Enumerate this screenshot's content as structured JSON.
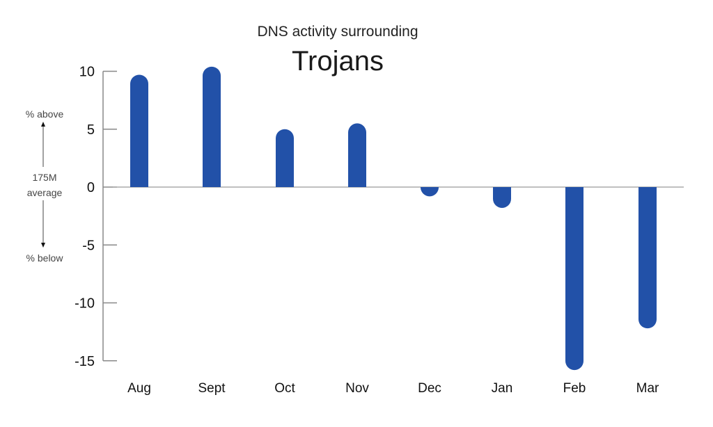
{
  "chart_data": {
    "type": "bar",
    "title": "Trojans",
    "subtitle": "DNS activity surrounding",
    "xlabel": "",
    "ylabel": "% above / % below 175M average",
    "categories": [
      "Aug",
      "Sept",
      "Oct",
      "Nov",
      "Dec",
      "Jan",
      "Feb",
      "Mar"
    ],
    "values": [
      9.7,
      10.4,
      5.0,
      5.5,
      -0.8,
      -1.8,
      -15.8,
      -12.2
    ],
    "ylim": [
      -15,
      10
    ],
    "yticks": [
      10,
      5,
      0,
      -5,
      -10,
      -15
    ],
    "grid": false,
    "bar_color": "#2251a8",
    "annotations": {
      "above": "% above",
      "middle_line1": "175M",
      "middle_line2": "average",
      "below": "% below"
    }
  }
}
